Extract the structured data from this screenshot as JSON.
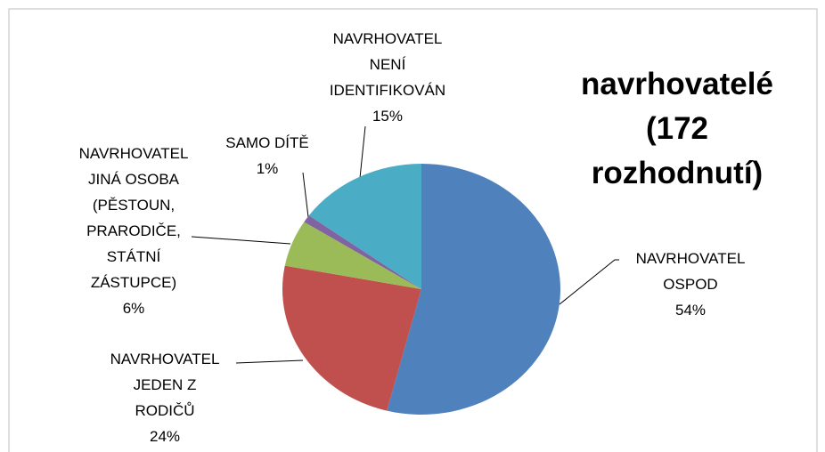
{
  "chart_data": {
    "type": "pie",
    "title": "navrhovatelé\n(172 rozhodnutí)",
    "categories": [
      "NAVRHOVATEL\nOSPOD",
      "NAVRHOVATEL\nJEDEN Z\nRODIČŮ",
      "NAVRHOVATEL\nJINÁ OSOBA\n(PĚSTOUN,\nPRARODIČE,\nSTÁTNÍ\nZÁSTUPCE)",
      "SAMO DÍTĚ",
      "NAVRHOVATEL\nNENÍ\nIDENTIFIKOVÁN"
    ],
    "values": [
      54,
      24,
      6,
      1,
      15
    ],
    "value_labels": [
      "54%",
      "24%",
      "6%",
      "1%",
      "15%"
    ],
    "colors": [
      "#4f81bd",
      "#c0504d",
      "#9bbb59",
      "#8064a2",
      "#4bacc6"
    ]
  }
}
